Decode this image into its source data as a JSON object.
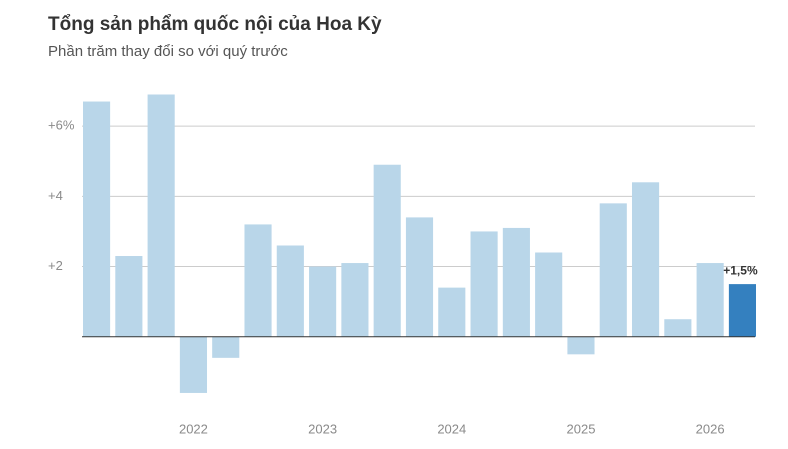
{
  "chart_data": {
    "type": "bar",
    "title": "Tổng sản phẩm quốc nội của Hoa Kỳ",
    "subtitle": "Phần trăm thay đổi so với quý trước",
    "categories": [
      null,
      null,
      null,
      "2022",
      null,
      null,
      null,
      "2023",
      null,
      null,
      null,
      "2024",
      null,
      null,
      null,
      "2025",
      null,
      null,
      null,
      "2026",
      null
    ],
    "values": [
      6.7,
      2.3,
      6.9,
      -1.6,
      -0.6,
      3.2,
      2.6,
      2.0,
      2.1,
      4.9,
      3.4,
      1.4,
      3.0,
      3.1,
      2.4,
      -0.5,
      3.8,
      4.4,
      0.5,
      2.1,
      1.5
    ],
    "value_labels": [
      null,
      null,
      null,
      null,
      null,
      null,
      null,
      null,
      null,
      null,
      null,
      null,
      null,
      null,
      null,
      null,
      null,
      null,
      null,
      null,
      "+1,5%"
    ],
    "colors": [
      "#b9d6e9",
      "#b9d6e9",
      "#b9d6e9",
      "#b9d6e9",
      "#b9d6e9",
      "#b9d6e9",
      "#b9d6e9",
      "#b9d6e9",
      "#b9d6e9",
      "#b9d6e9",
      "#b9d6e9",
      "#b9d6e9",
      "#b9d6e9",
      "#b9d6e9",
      "#b9d6e9",
      "#b9d6e9",
      "#b9d6e9",
      "#b9d6e9",
      "#b9d6e9",
      "#b9d6e9",
      "#3480bf"
    ],
    "ylim": [
      -2,
      7
    ],
    "yticks": [
      {
        "value": 2,
        "label": "+2"
      },
      {
        "value": 4,
        "label": "+4"
      },
      {
        "value": 6,
        "label": "+6%"
      }
    ],
    "grid": true
  }
}
